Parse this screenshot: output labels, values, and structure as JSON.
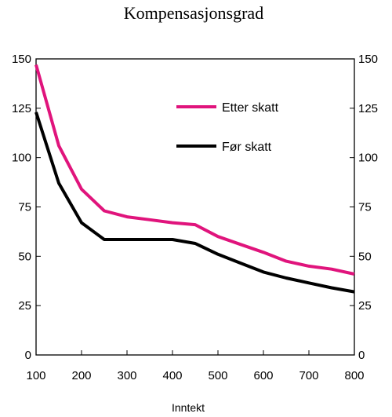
{
  "chart_data": {
    "type": "line",
    "title": "Kompensasjonsgrad",
    "xlabel": "Inntekt",
    "ylabel": "",
    "xlim": [
      100,
      800
    ],
    "ylim": [
      0,
      150
    ],
    "x_ticks": [
      "100",
      "200",
      "300",
      "400",
      "500",
      "600",
      "700",
      "800"
    ],
    "y_ticks": [
      "0",
      "25",
      "50",
      "75",
      "100",
      "125",
      "150"
    ],
    "x": [
      100,
      150,
      200,
      250,
      300,
      350,
      400,
      450,
      500,
      550,
      600,
      650,
      700,
      750,
      800
    ],
    "series": [
      {
        "name": "Etter skatt",
        "color": "#e0147c",
        "values": [
          147,
          106,
          84,
          73,
          70,
          68.5,
          67,
          66,
          60,
          56,
          52,
          47.5,
          45,
          43.5,
          41
        ]
      },
      {
        "name": "Før skatt",
        "color": "#000000",
        "values": [
          123,
          87,
          67,
          58.5,
          58.5,
          58.5,
          58.5,
          56.5,
          51,
          46.5,
          42,
          39,
          36.5,
          34,
          32
        ]
      }
    ],
    "legend_position": "top-right",
    "grid": false,
    "right_axis_mirror": true
  }
}
